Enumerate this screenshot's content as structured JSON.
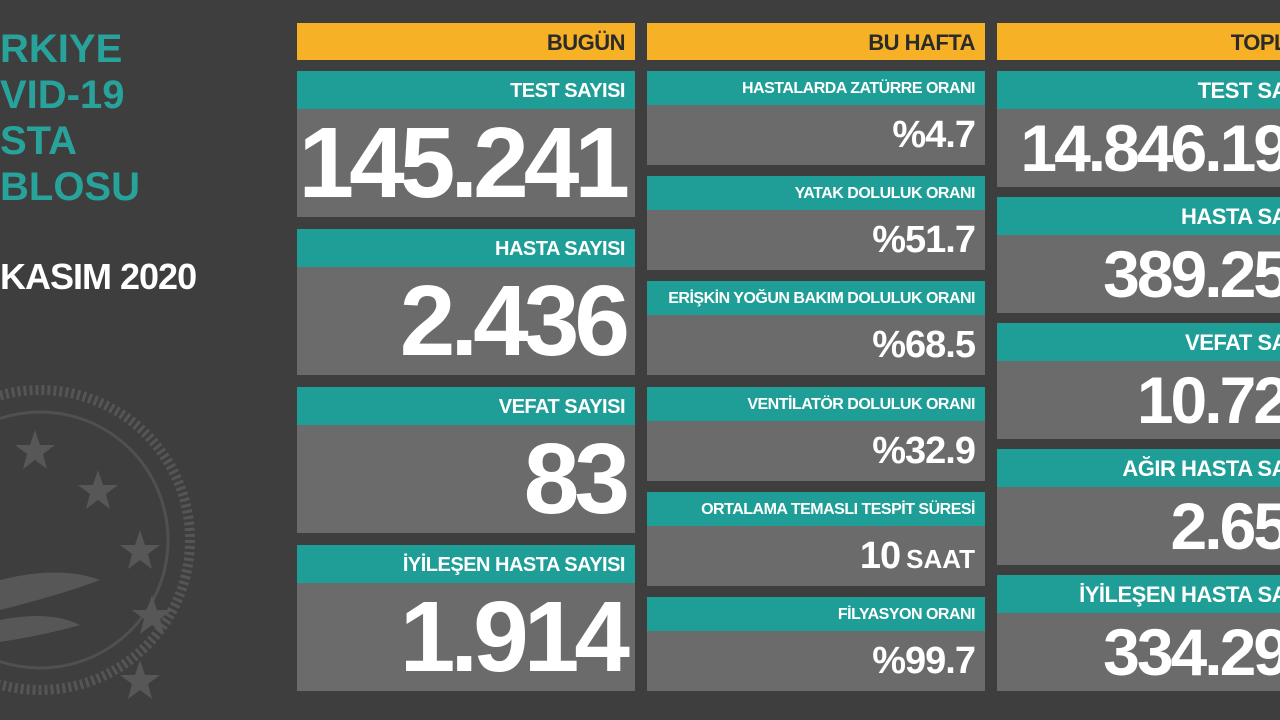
{
  "title": {
    "lines": [
      "RKIYE",
      "VID-19",
      "STA",
      "BLOSU"
    ],
    "date": "KASIM 2020"
  },
  "columns": [
    {
      "header": "BUGÜN",
      "cards": [
        {
          "label": "TEST SAYISI",
          "value": "145.241"
        },
        {
          "label": "HASTA SAYISI",
          "value": "2.436"
        },
        {
          "label": "VEFAT SAYISI",
          "value": "83"
        },
        {
          "label": "İYİLEŞEN HASTA SAYISI",
          "value": "1.914"
        }
      ]
    },
    {
      "header": "BU HAFTA",
      "cards": [
        {
          "label": "HASTALARDA ZATÜRRE ORANI",
          "value": "%4.7"
        },
        {
          "label": "YATAK DOLULUK ORANI",
          "value": "%51.7"
        },
        {
          "label": "ERİŞKİN YOĞUN BAKIM DOLULUK ORANI",
          "value": "%68.5"
        },
        {
          "label": "VENTİLATÖR DOLULUK ORANI",
          "value": "%32.9"
        },
        {
          "label": "ORTALAMA TEMASLI TESPİT SÜRESİ",
          "value": "10",
          "unit": "SAAT"
        },
        {
          "label": "FİLYASYON ORANI",
          "value": "%99.7"
        }
      ]
    },
    {
      "header": "TOPL",
      "cards": [
        {
          "label": "TEST SA",
          "value": "14.846.19"
        },
        {
          "label": "HASTA SA",
          "value": "389.25"
        },
        {
          "label": "VEFAT SA",
          "value": "10.72"
        },
        {
          "label": "AĞIR HASTA SA",
          "value": "2.65"
        },
        {
          "label": "İYİLEŞEN HASTA SA",
          "value": "334.29"
        }
      ]
    }
  ]
}
